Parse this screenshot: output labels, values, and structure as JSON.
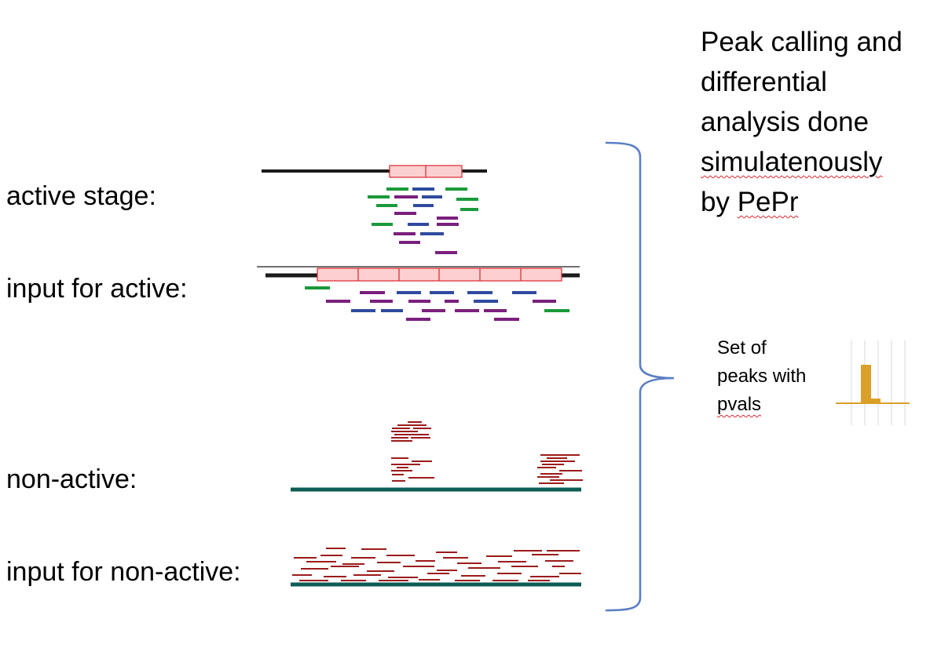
{
  "labels": {
    "active_stage": "active stage:",
    "input_active": "input for active:",
    "non_active": "non-active:",
    "input_non_active": "input for non-active:"
  },
  "side_text": {
    "line1": "Peak calling and",
    "line2": "differential",
    "line3": "analysis done",
    "line4": "simulatenously",
    "line5_a": "by ",
    "line5_b": "PePr"
  },
  "peaks_text": {
    "line1": "Set of",
    "line2": "peaks with",
    "line3": "pvals"
  },
  "colors": {
    "genome_line": "#1a1a1a",
    "box_fill": "#fcd0d0",
    "box_stroke": "#d9272e",
    "read_green": "#1a9a3a",
    "read_blue": "#2f4a9e",
    "read_purple": "#7a1f7d",
    "read_darkred": "#9b1b1b",
    "baseline_teal": "#0d5c55",
    "brace": "#5b7fc4",
    "bar": "#d9a02a"
  }
}
